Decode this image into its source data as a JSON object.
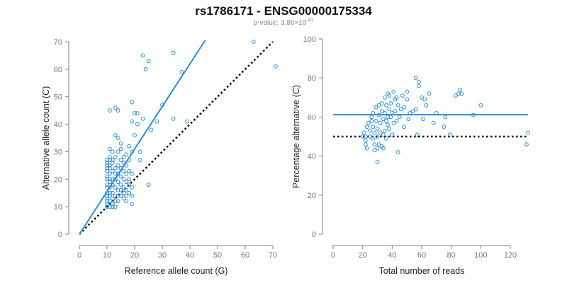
{
  "title": "rs1786171 - ENSG00000175334",
  "subtitle": {
    "prefix": "p-value: 3.86×10",
    "exponent": "-47"
  },
  "colors": {
    "series": "#2b8cd8",
    "reference": "#000000",
    "axis": "#808080",
    "tick_text": "#777777"
  },
  "chart_data": [
    {
      "type": "scatter",
      "xlabel": "Reference allele count (G)",
      "ylabel": "Alternative allele count (C)",
      "xlim": [
        0,
        70
      ],
      "ylim": [
        0,
        70
      ],
      "xticks": [
        0,
        10,
        20,
        30,
        40,
        50,
        60,
        70
      ],
      "yticks": [
        0,
        10,
        20,
        30,
        40,
        50,
        60,
        70
      ],
      "points": [
        [
          10,
          27
        ],
        [
          10,
          26
        ],
        [
          10,
          25
        ],
        [
          10,
          24
        ],
        [
          10,
          23
        ],
        [
          10,
          21
        ],
        [
          10,
          20
        ],
        [
          10,
          18
        ],
        [
          10,
          17
        ],
        [
          10,
          15
        ],
        [
          10,
          14
        ],
        [
          10,
          13
        ],
        [
          10,
          12
        ],
        [
          10,
          11
        ],
        [
          10,
          10
        ],
        [
          11,
          31
        ],
        [
          11,
          28
        ],
        [
          11,
          27
        ],
        [
          11,
          25
        ],
        [
          11,
          24
        ],
        [
          11,
          22
        ],
        [
          11,
          20
        ],
        [
          11,
          19
        ],
        [
          11,
          17
        ],
        [
          11,
          15
        ],
        [
          11,
          14
        ],
        [
          11,
          12
        ],
        [
          11,
          10
        ],
        [
          12,
          30
        ],
        [
          12,
          27
        ],
        [
          12,
          26
        ],
        [
          12,
          23
        ],
        [
          12,
          20
        ],
        [
          12,
          18
        ],
        [
          12,
          15
        ],
        [
          12,
          13
        ],
        [
          12,
          11
        ],
        [
          12,
          10
        ],
        [
          13,
          36
        ],
        [
          13,
          28
        ],
        [
          13,
          24
        ],
        [
          13,
          22
        ],
        [
          13,
          20
        ],
        [
          13,
          17
        ],
        [
          13,
          14
        ],
        [
          13,
          12
        ],
        [
          13,
          10
        ],
        [
          14,
          35
        ],
        [
          14,
          30
        ],
        [
          14,
          25
        ],
        [
          14,
          22
        ],
        [
          14,
          19
        ],
        [
          14,
          16
        ],
        [
          14,
          14
        ],
        [
          14,
          12
        ],
        [
          15,
          33
        ],
        [
          15,
          31
        ],
        [
          15,
          27
        ],
        [
          15,
          24
        ],
        [
          15,
          21
        ],
        [
          15,
          18
        ],
        [
          15,
          16
        ],
        [
          15,
          14
        ],
        [
          16,
          28
        ],
        [
          16,
          26
        ],
        [
          16,
          23
        ],
        [
          16,
          20
        ],
        [
          16,
          17
        ],
        [
          16,
          15
        ],
        [
          16,
          13
        ],
        [
          17,
          29
        ],
        [
          17,
          25
        ],
        [
          17,
          22
        ],
        [
          17,
          19
        ],
        [
          17,
          16
        ],
        [
          17,
          14
        ],
        [
          17,
          12
        ],
        [
          18,
          32
        ],
        [
          18,
          27
        ],
        [
          18,
          23
        ],
        [
          18,
          20
        ],
        [
          18,
          18
        ],
        [
          18,
          15
        ],
        [
          19,
          48
        ],
        [
          19,
          41
        ],
        [
          19,
          30
        ],
        [
          19,
          22
        ],
        [
          19,
          17
        ],
        [
          19,
          14
        ],
        [
          19,
          11
        ],
        [
          11,
          45
        ],
        [
          13,
          46
        ],
        [
          14,
          45
        ],
        [
          20,
          44
        ],
        [
          20,
          36
        ],
        [
          21,
          44
        ],
        [
          21,
          40
        ],
        [
          22,
          30
        ],
        [
          22,
          27
        ],
        [
          23,
          42
        ],
        [
          23,
          65
        ],
        [
          24,
          60
        ],
        [
          25,
          63
        ],
        [
          25,
          18
        ],
        [
          26,
          38
        ],
        [
          28,
          41
        ],
        [
          30,
          47
        ],
        [
          34,
          66
        ],
        [
          34,
          42
        ],
        [
          37,
          59
        ],
        [
          39,
          41
        ],
        [
          63,
          70
        ],
        [
          71,
          61
        ]
      ],
      "fit_line": {
        "x": [
          0,
          45.5
        ],
        "y": [
          0,
          70.5
        ]
      },
      "reference_line": {
        "x": [
          0,
          70
        ],
        "y": [
          0,
          70
        ]
      }
    },
    {
      "type": "scatter",
      "xlabel": "Total number of reads",
      "ylabel": "Percentage alternative (C)",
      "xlim": [
        0,
        132
      ],
      "ylim": [
        0,
        100
      ],
      "xticks": [
        0,
        20,
        40,
        60,
        80,
        100,
        120
      ],
      "yticks": [
        0,
        20,
        40,
        60,
        80,
        100
      ],
      "points": [
        [
          20,
          50
        ],
        [
          21,
          52
        ],
        [
          22,
          48
        ],
        [
          22,
          50
        ],
        [
          22,
          46
        ],
        [
          23,
          55
        ],
        [
          23,
          44
        ],
        [
          24,
          57
        ],
        [
          25,
          50
        ],
        [
          25,
          53
        ],
        [
          26,
          58
        ],
        [
          26,
          60
        ],
        [
          27,
          49
        ],
        [
          27,
          55
        ],
        [
          27,
          62
        ],
        [
          28,
          52
        ],
        [
          28,
          46
        ],
        [
          28,
          43
        ],
        [
          29,
          58
        ],
        [
          29,
          65
        ],
        [
          30,
          50
        ],
        [
          30,
          44
        ],
        [
          30,
          37
        ],
        [
          30,
          54
        ],
        [
          31,
          61
        ],
        [
          31,
          66
        ],
        [
          31,
          46
        ],
        [
          32,
          57
        ],
        [
          32,
          52
        ],
        [
          33,
          63
        ],
        [
          33,
          67
        ],
        [
          33,
          45
        ],
        [
          34,
          59
        ],
        [
          34,
          51
        ],
        [
          34,
          44
        ],
        [
          35,
          62
        ],
        [
          35,
          70
        ],
        [
          35,
          53
        ],
        [
          36,
          58
        ],
        [
          36,
          66
        ],
        [
          36,
          49
        ],
        [
          37,
          72
        ],
        [
          37,
          60
        ],
        [
          37,
          56
        ],
        [
          38,
          64
        ],
        [
          38,
          71
        ],
        [
          38,
          54
        ],
        [
          39,
          67
        ],
        [
          39,
          60
        ],
        [
          40,
          62
        ],
        [
          40,
          51
        ],
        [
          41,
          57
        ],
        [
          41,
          73
        ],
        [
          42,
          63
        ],
        [
          42,
          69
        ],
        [
          43,
          58
        ],
        [
          43,
          70
        ],
        [
          44,
          42
        ],
        [
          44,
          66
        ],
        [
          45,
          60
        ],
        [
          46,
          64
        ],
        [
          47,
          71
        ],
        [
          48,
          65
        ],
        [
          48,
          55
        ],
        [
          50,
          73
        ],
        [
          50,
          69
        ],
        [
          51,
          59
        ],
        [
          52,
          62
        ],
        [
          54,
          63
        ],
        [
          56,
          80
        ],
        [
          56,
          64
        ],
        [
          57,
          51
        ],
        [
          58,
          78
        ],
        [
          58,
          76
        ],
        [
          60,
          70
        ],
        [
          61,
          59
        ],
        [
          62,
          69
        ],
        [
          63,
          66
        ],
        [
          65,
          72
        ],
        [
          68,
          57
        ],
        [
          70,
          62
        ],
        [
          75,
          55
        ],
        [
          76,
          60
        ],
        [
          79,
          51
        ],
        [
          83,
          71
        ],
        [
          85,
          72
        ],
        [
          86,
          74
        ],
        [
          87,
          72
        ],
        [
          95,
          61
        ],
        [
          100,
          66
        ],
        [
          132,
          52
        ],
        [
          131,
          46
        ]
      ],
      "mean_line": {
        "y": 61.2
      },
      "reference_line": {
        "y": 50
      }
    }
  ]
}
